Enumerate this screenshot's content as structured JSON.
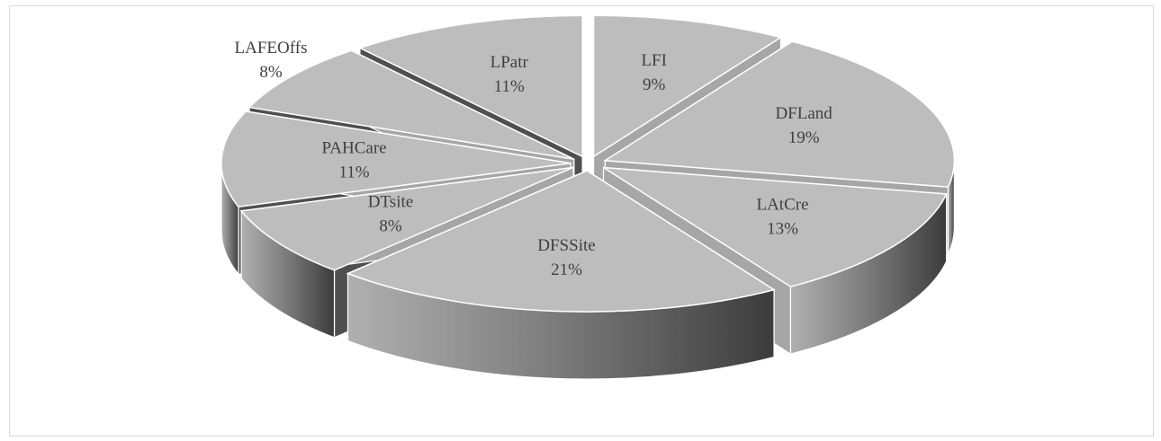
{
  "chart_data": {
    "type": "pie",
    "style": "3d-exploded",
    "colors": {
      "top": "#bdbdbd",
      "side_dark": "#4f4f4f",
      "side_light": "#a6a6a6",
      "edge": "#ffffff"
    },
    "slices": [
      {
        "label": "LFI",
        "value": 9,
        "value_label": "9%"
      },
      {
        "label": "DFLand",
        "value": 19,
        "value_label": "19%"
      },
      {
        "label": "LAtCre",
        "value": 13,
        "value_label": "13%"
      },
      {
        "label": "DFSSite",
        "value": 21,
        "value_label": "21%"
      },
      {
        "label": "DTsite",
        "value": 8,
        "value_label": "8%"
      },
      {
        "label": "PAHCare",
        "value": 11,
        "value_label": "11%"
      },
      {
        "label": "LAFEOffs",
        "value": 8,
        "value_label": "8%"
      },
      {
        "label": "LPatr",
        "value": 11,
        "value_label": "11%"
      }
    ]
  }
}
